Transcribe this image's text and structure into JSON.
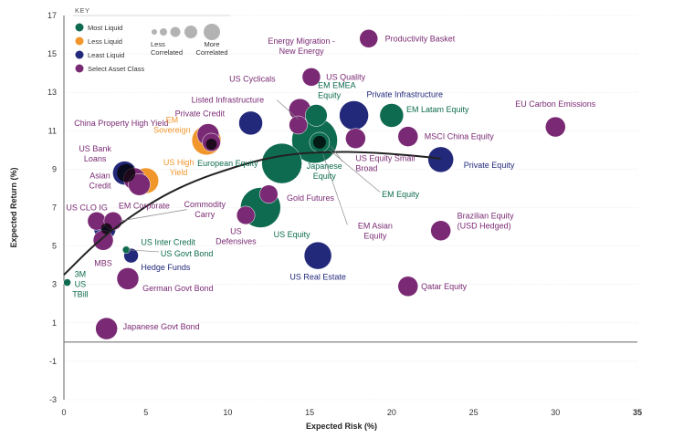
{
  "chart_data": {
    "type": "scatter",
    "title": "",
    "xlabel": "Expected Risk (%)",
    "ylabel": "Expected Return (%)",
    "xlim": [
      0,
      35
    ],
    "ylim": [
      -3,
      17
    ],
    "xticks": [
      0,
      5,
      10,
      15,
      20,
      25,
      30,
      35
    ],
    "yticks": [
      -3,
      -1,
      1,
      3,
      5,
      7,
      9,
      11,
      13,
      15,
      17
    ],
    "colors": {
      "most_liquid": "#0e6b4f",
      "less_liquid": "#f0962b",
      "least_liquid": "#22287a",
      "select_asset_class": "#7a2a74",
      "overlap": "#000000",
      "frontier": "#222222",
      "key_bubble": "#b3b3b3"
    },
    "key": {
      "title": "KEY",
      "items": [
        {
          "label": "Most Liquid",
          "color": "#0e6b4f"
        },
        {
          "label": "Less Liquid",
          "color": "#f0962b"
        },
        {
          "label": "Least Liquid",
          "color": "#22287a"
        },
        {
          "label": "Select Asset Class",
          "color": "#7a2a74"
        }
      ],
      "less_correlated": "Less Correlated",
      "more_correlated": "More Correlated"
    },
    "frontier": {
      "x": [
        0,
        2,
        4,
        6,
        8,
        10,
        12,
        14,
        16,
        18,
        20,
        22,
        23
      ],
      "y": [
        3.5,
        5.2,
        6.5,
        7.6,
        8.4,
        9.0,
        9.5,
        9.8,
        9.9,
        9.9,
        9.8,
        9.65,
        9.55
      ]
    },
    "points": [
      {
        "name": "Productivity Basket",
        "x": 18.6,
        "y": 15.8,
        "size": 10,
        "group": "select"
      },
      {
        "name": "EU Carbon Emissions",
        "x": 30.0,
        "y": 11.2,
        "size": 11,
        "group": "select"
      },
      {
        "name": "US Quality",
        "x": 15.1,
        "y": 13.8,
        "size": 10,
        "group": "select"
      },
      {
        "name": "Energy Migration - New Energy",
        "x": 14.4,
        "y": 12.1,
        "size": 12,
        "group": "select"
      },
      {
        "name": "US Cyclicals",
        "x": 14.3,
        "y": 11.3,
        "size": 10,
        "group": "select"
      },
      {
        "name": "EM EMEA Equity",
        "x": 15.4,
        "y": 11.8,
        "size": 12,
        "group": "most"
      },
      {
        "name": "Private Infrastructure",
        "x": 17.7,
        "y": 11.8,
        "size": 16,
        "group": "least"
      },
      {
        "name": "EM Latam Equity",
        "x": 20.0,
        "y": 11.8,
        "size": 13,
        "group": "most"
      },
      {
        "name": "MSCI China Equity",
        "x": 21.0,
        "y": 10.7,
        "size": 11,
        "group": "select"
      },
      {
        "name": "Listed Infrastructure",
        "x": 11.4,
        "y": 11.4,
        "size": 13,
        "group": "least"
      },
      {
        "name": "Private Credit",
        "x": 8.8,
        "y": 10.8,
        "size": 12,
        "group": "select"
      },
      {
        "name": "China Property High Yield",
        "x": 9.0,
        "y": 10.4,
        "size": 10,
        "group": "select"
      },
      {
        "name": "EM Sovereign",
        "x": 8.7,
        "y": 10.5,
        "size": 16,
        "group": "less"
      },
      {
        "name": "European Equity",
        "x": 15.3,
        "y": 10.5,
        "size": 25,
        "group": "most"
      },
      {
        "name": "US Equity Small Broad",
        "x": 17.8,
        "y": 10.6,
        "size": 11,
        "group": "select"
      },
      {
        "name": "Japanese Equity",
        "x": 13.3,
        "y": 9.3,
        "size": 22,
        "group": "most"
      },
      {
        "name": "EM Equity",
        "x": 15.6,
        "y": 10.4,
        "size": 11,
        "group": "most"
      },
      {
        "name": "Private Equity",
        "x": 23.0,
        "y": 9.5,
        "size": 14,
        "group": "least"
      },
      {
        "name": "US Bank Loans",
        "x": 3.7,
        "y": 8.8,
        "size": 13,
        "group": "least"
      },
      {
        "name": "US High Yield",
        "x": 5.0,
        "y": 8.4,
        "size": 14,
        "group": "less"
      },
      {
        "name": "Asian Credit",
        "x": 4.3,
        "y": 8.5,
        "size": 12,
        "group": "select"
      },
      {
        "name": "EM Corporate",
        "x": 4.6,
        "y": 8.2,
        "size": 12,
        "group": "select"
      },
      {
        "name": "Gold Futures",
        "x": 12.5,
        "y": 7.7,
        "size": 10,
        "group": "select"
      },
      {
        "name": "US Equity",
        "x": 12.0,
        "y": 7.0,
        "size": 22,
        "group": "most"
      },
      {
        "name": "US Defensives",
        "x": 11.1,
        "y": 6.6,
        "size": 10,
        "group": "select"
      },
      {
        "name": "US CLO IG",
        "x": 2.0,
        "y": 6.3,
        "size": 10,
        "group": "select"
      },
      {
        "name": "Commodity Carry",
        "x": 3.0,
        "y": 6.3,
        "size": 10,
        "group": "select"
      },
      {
        "name": "US Inter Credit",
        "x": 2.5,
        "y": 5.9,
        "size": 12,
        "group": "least"
      },
      {
        "name": "MBS",
        "x": 2.4,
        "y": 5.3,
        "size": 11,
        "group": "select"
      },
      {
        "name": "Brazilian Equity (USD Hedged)",
        "x": 23.0,
        "y": 5.8,
        "size": 11,
        "group": "select"
      },
      {
        "name": "US Govt Bond",
        "x": 3.8,
        "y": 4.8,
        "size": 4,
        "group": "most"
      },
      {
        "name": "Hedge Funds",
        "x": 4.1,
        "y": 4.5,
        "size": 8,
        "group": "least"
      },
      {
        "name": "US Real Estate",
        "x": 15.5,
        "y": 4.5,
        "size": 15,
        "group": "least"
      },
      {
        "name": "German Govt Bond",
        "x": 3.9,
        "y": 3.3,
        "size": 12,
        "group": "select"
      },
      {
        "name": "Qatar Equity",
        "x": 21.0,
        "y": 2.9,
        "size": 11,
        "group": "select"
      },
      {
        "name": "3M US TBill",
        "x": 0.2,
        "y": 3.1,
        "size": 4,
        "group": "most"
      },
      {
        "name": "Japanese Govt Bond",
        "x": 2.6,
        "y": 0.7,
        "size": 12,
        "group": "select"
      }
    ],
    "labels": [
      {
        "text": "Productivity Basket",
        "lines": [
          "Productivity Basket"
        ],
        "color": "#7a2a74",
        "anchor": "start",
        "lx": 19.6,
        "ly": 15.8
      },
      {
        "text": "EU Carbon Emissions",
        "lines": [
          "EU Carbon Emissions"
        ],
        "color": "#7a2a74",
        "anchor": "middle",
        "lx": 30.0,
        "ly": 12.4
      },
      {
        "text": "US Quality",
        "lines": [
          "US Quality"
        ],
        "color": "#7a2a74",
        "anchor": "start",
        "lx": 16.0,
        "ly": 13.8
      },
      {
        "text": "Energy Migration - New Energy",
        "lines": [
          "Energy Migration -",
          "New Energy"
        ],
        "color": "#7a2a74",
        "anchor": "middle",
        "lx": 14.5,
        "ly": 15.4
      },
      {
        "text": "US Cyclicals",
        "lines": [
          "US Cyclicals"
        ],
        "color": "#7a2a74",
        "anchor": "middle",
        "lx": 11.5,
        "ly": 13.7
      },
      {
        "text": "EM EMEA Equity",
        "lines": [
          "EM EMEA",
          "Equity"
        ],
        "color": "#0e6b4f",
        "anchor": "start",
        "lx": 15.5,
        "ly": 13.1
      },
      {
        "text": "Private Infrastructure",
        "lines": [
          "Private Infrastructure"
        ],
        "color": "#22287a",
        "anchor": "middle",
        "lx": 20.8,
        "ly": 12.9
      },
      {
        "text": "EM Latam Equity",
        "lines": [
          "EM Latam Equity"
        ],
        "color": "#0e6b4f",
        "anchor": "start",
        "lx": 20.9,
        "ly": 12.1
      },
      {
        "text": "MSCI China Equity",
        "lines": [
          "MSCI China Equity"
        ],
        "color": "#7a2a74",
        "anchor": "start",
        "lx": 22.0,
        "ly": 10.7
      },
      {
        "text": "Listed Infrastructure",
        "lines": [
          "Listed  Infrastructure"
        ],
        "color": "#7a2a74",
        "anchor": "middle",
        "lx": 10.0,
        "ly": 12.6
      },
      {
        "text": "Private Credit",
        "lines": [
          "Private Credit"
        ],
        "color": "#7a2a74",
        "anchor": "middle",
        "lx": 8.3,
        "ly": 11.9
      },
      {
        "text": "China Property High Yield",
        "lines": [
          "China Property High Yield"
        ],
        "color": "#7a2a74",
        "anchor": "middle",
        "lx": 3.5,
        "ly": 11.4
      },
      {
        "text": "EM Sovereign",
        "lines": [
          "EM",
          "Sovereign"
        ],
        "color": "#f0962b",
        "anchor": "middle",
        "lx": 6.6,
        "ly": 11.3
      },
      {
        "text": "European Equity",
        "lines": [
          "European Equity"
        ],
        "color": "#0e6b4f",
        "anchor": "middle",
        "lx": 10.0,
        "ly": 9.3
      },
      {
        "text": "US Equity Small Broad",
        "lines": [
          "US Equity Small",
          "Broad"
        ],
        "color": "#7a2a74",
        "anchor": "start",
        "lx": 17.8,
        "ly": 9.3
      },
      {
        "text": "Japanese Equity",
        "lines": [
          "Japanese",
          "Equity"
        ],
        "color": "#0e6b4f",
        "anchor": "middle",
        "lx": 15.9,
        "ly": 8.9
      },
      {
        "text": "EM Equity",
        "lines": [
          "EM Equity"
        ],
        "color": "#0e6b4f",
        "anchor": "start",
        "lx": 19.4,
        "ly": 7.7
      },
      {
        "text": "Private Equity",
        "lines": [
          "Private Equity"
        ],
        "color": "#22287a",
        "anchor": "start",
        "lx": 24.4,
        "ly": 9.2
      },
      {
        "text": "US Bank Loans",
        "lines": [
          "US Bank",
          "Loans"
        ],
        "color": "#7a2a74",
        "anchor": "middle",
        "lx": 1.9,
        "ly": 9.8
      },
      {
        "text": "US High Yield",
        "lines": [
          "US High",
          "Yield"
        ],
        "color": "#f0962b",
        "anchor": "middle",
        "lx": 7.0,
        "ly": 9.1
      },
      {
        "text": "Asian Credit",
        "lines": [
          "Asian",
          "Credit"
        ],
        "color": "#7a2a74",
        "anchor": "middle",
        "lx": 2.2,
        "ly": 8.4
      },
      {
        "text": "EM Corporate",
        "lines": [
          "EM Corporate"
        ],
        "color": "#7a2a74",
        "anchor": "middle",
        "lx": 4.9,
        "ly": 7.1
      },
      {
        "text": "Gold Futures",
        "lines": [
          "Gold Futures"
        ],
        "color": "#7a2a74",
        "anchor": "start",
        "lx": 13.6,
        "ly": 7.5
      },
      {
        "text": "US Equity",
        "lines": [
          "US Equity"
        ],
        "color": "#0e6b4f",
        "anchor": "start",
        "lx": 12.8,
        "ly": 5.6
      },
      {
        "text": "US Defensives",
        "lines": [
          "US",
          "Defensives"
        ],
        "color": "#7a2a74",
        "anchor": "middle",
        "lx": 10.5,
        "ly": 5.5
      },
      {
        "text": "US CLO IG",
        "lines": [
          "US CLO IG"
        ],
        "color": "#7a2a74",
        "anchor": "middle",
        "lx": 1.4,
        "ly": 7.0
      },
      {
        "text": "Commodity Carry",
        "lines": [
          "Commodity",
          "Carry"
        ],
        "color": "#7a2a74",
        "anchor": "middle",
        "lx": 8.6,
        "ly": 6.9
      },
      {
        "text": "US Inter Credit",
        "lines": [
          "US Inter Credit"
        ],
        "color": "#0e6b4f",
        "anchor": "start",
        "lx": 4.7,
        "ly": 5.2
      },
      {
        "text": "MBS",
        "lines": [
          "MBS"
        ],
        "color": "#7a2a74",
        "anchor": "middle",
        "lx": 2.4,
        "ly": 4.1
      },
      {
        "text": "Brazilian Equity (USD Hedged)",
        "lines": [
          "Brazilian Equity",
          "(USD Hedged)"
        ],
        "color": "#7a2a74",
        "anchor": "start",
        "lx": 24.0,
        "ly": 6.3
      },
      {
        "text": "US Govt Bond",
        "lines": [
          "US Govt Bond"
        ],
        "color": "#0e6b4f",
        "anchor": "start",
        "lx": 5.9,
        "ly": 4.6
      },
      {
        "text": "Hedge Funds",
        "lines": [
          "Hedge Funds"
        ],
        "color": "#22287a",
        "anchor": "start",
        "lx": 4.7,
        "ly": 3.9
      },
      {
        "text": "US Real Estate",
        "lines": [
          "US Real Estate"
        ],
        "color": "#22287a",
        "anchor": "middle",
        "lx": 15.5,
        "ly": 3.4
      },
      {
        "text": "German Govt Bond",
        "lines": [
          "German Govt Bond"
        ],
        "color": "#7a2a74",
        "anchor": "start",
        "lx": 4.8,
        "ly": 2.8
      },
      {
        "text": "Qatar Equity",
        "lines": [
          "Qatar Equity"
        ],
        "color": "#7a2a74",
        "anchor": "start",
        "lx": 21.8,
        "ly": 2.9
      },
      {
        "text": "3M US TBill",
        "lines": [
          "3M",
          "US",
          "TBill"
        ],
        "color": "#0e6b4f",
        "anchor": "middle",
        "lx": 1.0,
        "ly": 3.0
      },
      {
        "text": "Japanese Govt Bond",
        "lines": [
          "Japanese Govt Bond"
        ],
        "color": "#7a2a74",
        "anchor": "start",
        "lx": 3.6,
        "ly": 0.8
      }
    ],
    "leaders": [
      {
        "from": [
          13.0,
          12.6
        ],
        "to": [
          14.3,
          11.6
        ]
      },
      {
        "from": [
          17.0,
          9.4
        ],
        "to": [
          16.3,
          10.2
        ]
      },
      {
        "from": [
          19.3,
          7.8
        ],
        "to": [
          16.2,
          10.0
        ]
      },
      {
        "from": [
          17.3,
          6.1
        ],
        "to": [
          15.8,
          9.8
        ]
      },
      {
        "from": [
          7.5,
          6.9
        ],
        "to": [
          3.4,
          6.3
        ]
      },
      {
        "from": [
          5.8,
          4.7
        ],
        "to": [
          3.9,
          4.8
        ]
      }
    ],
    "extra_labels": [
      {
        "lines": [
          "EM Asian",
          "Equity"
        ],
        "color": "#7a2a74",
        "anchor": "middle",
        "lx": 19.0,
        "ly": 5.8
      }
    ]
  }
}
